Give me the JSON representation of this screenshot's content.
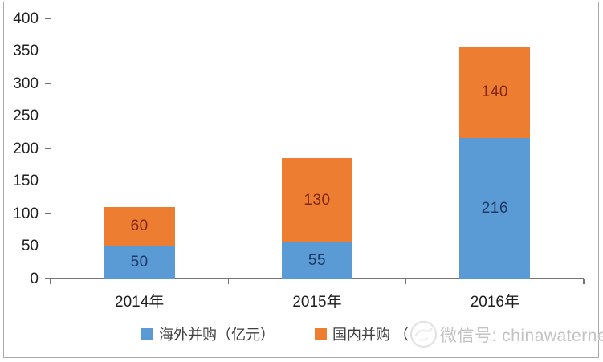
{
  "chart_data": {
    "type": "bar",
    "stacked": true,
    "title": "",
    "xlabel": "",
    "ylabel": "",
    "categories": [
      "2014年",
      "2015年",
      "2016年"
    ],
    "series": [
      {
        "name": "海外并购（亿元）",
        "color": "#5B9BD5",
        "label_color": "#1F3864",
        "values": [
          50,
          55,
          216
        ]
      },
      {
        "name": "国内并购",
        "color": "#ED7D31",
        "label_color": "#822716",
        "values": [
          60,
          130,
          140
        ]
      }
    ],
    "totals": [
      110,
      185,
      356
    ],
    "ylim": [
      0,
      400
    ],
    "yticks": [
      0,
      50,
      100,
      150,
      200,
      250,
      300,
      350,
      400
    ],
    "grid": false,
    "legend_position": "bottom"
  },
  "legend": {
    "item1_label": "海外并购（亿元）",
    "item2_label": "国内并购 （"
  },
  "watermark": {
    "logo": "wechat-circle-logo",
    "text": "微信号: chinawaternet"
  },
  "colors": {
    "series_blue": "#5B9BD5",
    "series_orange": "#ED7D31",
    "axis": "#737373",
    "tick_text": "#1f1f1f",
    "blue_value_text": "#1F3864",
    "orange_value_text": "#822716",
    "watermark_gray": "#c3c3c3",
    "frame_border": "#a9a9a9"
  }
}
